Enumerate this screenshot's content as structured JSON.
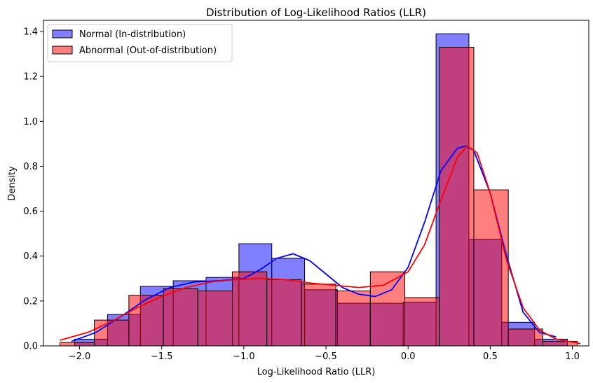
{
  "chart_data": {
    "type": "bar",
    "title": "Distribution of Log-Likelihood Ratios (LLR)",
    "xlabel": "Log-Likelihood Ratio (LLR)",
    "ylabel": "Density",
    "xlim": [
      -2.22,
      1.1
    ],
    "ylim": [
      0,
      1.45
    ],
    "xticks": [
      -2.0,
      -1.5,
      -1.0,
      -0.5,
      0.0,
      0.5,
      1.0
    ],
    "xtick_labels": [
      "−2.0",
      "−1.5",
      "−1.0",
      "−0.5",
      "0.0",
      "0.5",
      "1.0"
    ],
    "yticks": [
      0.0,
      0.2,
      0.4,
      0.6,
      0.8,
      1.0,
      1.2,
      1.4
    ],
    "ytick_labels": [
      "0.0",
      "0.2",
      "0.4",
      "0.6",
      "0.8",
      "1.0",
      "1.2",
      "1.4"
    ],
    "grid": false,
    "legend_position": "top-left",
    "series": [
      {
        "name": "Normal (In-distribution)",
        "color": "#0000ff",
        "bin_edges": [
          -2.03,
          -1.83,
          -1.63,
          -1.43,
          -1.23,
          -1.03,
          -0.83,
          -0.63,
          -0.43,
          -0.23,
          -0.03,
          0.17,
          0.37,
          0.57,
          0.77,
          0.97
        ],
        "hist_values": [
          0.03,
          0.14,
          0.265,
          0.29,
          0.305,
          0.455,
          0.39,
          0.25,
          0.19,
          0.19,
          0.195,
          1.39,
          0.475,
          0.105,
          0.03
        ],
        "kde": {
          "x": [
            -2.05,
            -1.9,
            -1.75,
            -1.6,
            -1.45,
            -1.3,
            -1.15,
            -1.0,
            -0.9,
            -0.8,
            -0.7,
            -0.6,
            -0.5,
            -0.4,
            -0.3,
            -0.2,
            -0.1,
            0.0,
            0.1,
            0.2,
            0.3,
            0.35,
            0.4,
            0.5,
            0.6,
            0.7,
            0.8,
            0.9
          ],
          "y": [
            0.02,
            0.06,
            0.13,
            0.205,
            0.26,
            0.285,
            0.29,
            0.3,
            0.34,
            0.39,
            0.41,
            0.38,
            0.32,
            0.26,
            0.23,
            0.22,
            0.25,
            0.35,
            0.55,
            0.78,
            0.88,
            0.89,
            0.87,
            0.68,
            0.4,
            0.15,
            0.06,
            0.04
          ]
        }
      },
      {
        "name": "Abnormal (Out-of-distribution)",
        "color": "#ff0000",
        "bin_edges": [
          -2.12,
          -1.91,
          -1.7,
          -1.49,
          -1.28,
          -1.07,
          -0.86,
          -0.65,
          -0.44,
          -0.23,
          -0.02,
          0.19,
          0.4,
          0.61,
          0.82,
          1.03
        ],
        "hist_values": [
          0.015,
          0.115,
          0.225,
          0.255,
          0.245,
          0.33,
          0.295,
          0.275,
          0.245,
          0.33,
          0.215,
          1.33,
          0.695,
          0.075,
          0.02
        ],
        "kde": {
          "x": [
            -2.12,
            -1.95,
            -1.8,
            -1.65,
            -1.5,
            -1.35,
            -1.2,
            -1.05,
            -0.9,
            -0.75,
            -0.6,
            -0.45,
            -0.3,
            -0.15,
            0.0,
            0.1,
            0.2,
            0.3,
            0.36,
            0.42,
            0.5,
            0.6,
            0.7,
            0.8,
            0.9,
            1.05
          ],
          "y": [
            0.025,
            0.06,
            0.11,
            0.17,
            0.22,
            0.26,
            0.285,
            0.295,
            0.3,
            0.295,
            0.28,
            0.27,
            0.26,
            0.27,
            0.33,
            0.45,
            0.65,
            0.84,
            0.89,
            0.86,
            0.68,
            0.38,
            0.17,
            0.07,
            0.03,
            0.01
          ]
        }
      }
    ]
  }
}
